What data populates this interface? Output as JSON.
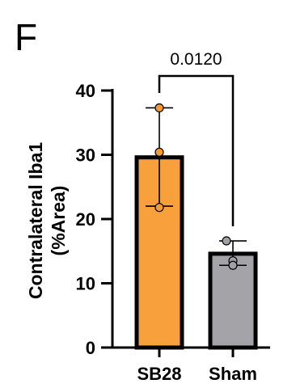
{
  "panel_label": "F",
  "chart_data": {
    "type": "bar",
    "categories": [
      "SB28",
      "Sham"
    ],
    "values": [
      29.6,
      14.6
    ],
    "error": [
      [
        22.0,
        37.3
      ],
      [
        12.8,
        16.6
      ]
    ],
    "points": [
      [
        37.3,
        30.4,
        21.8
      ],
      [
        16.6,
        13.5,
        12.8
      ]
    ],
    "ylabel_lines": [
      "Contralateral Iba1",
      "(%Area)"
    ],
    "xlabel": "",
    "ylim": [
      0,
      40
    ],
    "yticks": [
      0,
      10,
      20,
      30,
      40
    ],
    "colors": {
      "SB28": "#f7a03c",
      "Sham": "#a3a3a8",
      "SB28_points": "#f79a32",
      "Sham_points": "#a0a0a6",
      "outline": "#000000"
    },
    "annotation": {
      "text": "0.0120",
      "between": [
        "SB28",
        "Sham"
      ]
    },
    "grid": false
  }
}
